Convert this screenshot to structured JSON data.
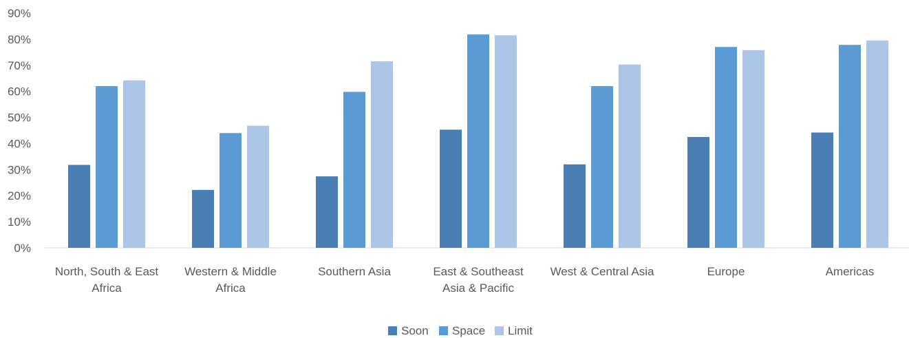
{
  "chart_data": {
    "type": "bar",
    "categories": [
      [
        "North, South & East",
        "Africa"
      ],
      [
        "Western & Middle",
        "Africa"
      ],
      [
        "Southern Asia"
      ],
      [
        "East & Southeast",
        "Asia & Pacific"
      ],
      [
        "West & Central Asia"
      ],
      [
        "Europe"
      ],
      [
        "Americas"
      ]
    ],
    "series": [
      {
        "name": "Soon",
        "color": "#4a7eb4",
        "values": [
          31.8,
          22.2,
          27.4,
          45.3,
          32.0,
          42.5,
          44.2
        ]
      },
      {
        "name": "Space",
        "color": "#5b9bd5",
        "values": [
          62.0,
          44.0,
          59.8,
          81.8,
          62.0,
          77.0,
          77.8
        ]
      },
      {
        "name": "Limit",
        "color": "#adc6e7",
        "values": [
          64.2,
          46.8,
          71.5,
          81.5,
          70.3,
          75.8,
          79.5
        ]
      }
    ],
    "ylim": [
      0,
      90
    ],
    "yticks": [
      "0%",
      "10%",
      "20%",
      "30%",
      "40%",
      "50%",
      "60%",
      "70%",
      "80%",
      "90%"
    ],
    "grid": false,
    "legend_position": "bottom"
  }
}
